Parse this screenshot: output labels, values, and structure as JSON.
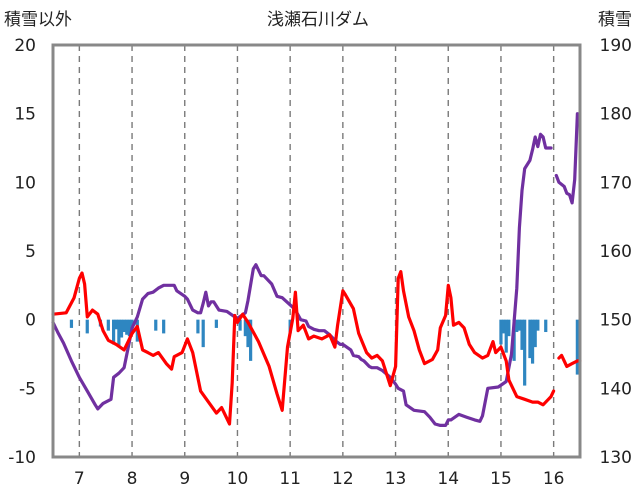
{
  "chart_data": {
    "type": "line",
    "title": "浅瀬石川ダム",
    "left_axis_label": "積雪以外",
    "right_axis_label": "積雪",
    "x_ticks": [
      "7",
      "8",
      "9",
      "10",
      "11",
      "12",
      "13",
      "14",
      "15",
      "16"
    ],
    "x_tick_values": [
      7,
      8,
      9,
      10,
      11,
      12,
      13,
      14,
      15,
      16
    ],
    "xlim": [
      6.5,
      16.5
    ],
    "ylim_left": [
      -10,
      20
    ],
    "ylim_right": [
      130,
      190
    ],
    "y_ticks_left": [
      "-10",
      "-5",
      "0",
      "5",
      "10",
      "15",
      "20"
    ],
    "y_ticks_right": [
      "130",
      "140",
      "150",
      "160",
      "170",
      "180",
      "190"
    ],
    "grid": "vertical dashed lines at each day",
    "series": [
      {
        "axis": "right",
        "color": "#7030a0",
        "points": [
          [
            6.5,
            149.6
          ],
          [
            6.6,
            148
          ],
          [
            6.7,
            146.6
          ],
          [
            6.85,
            144
          ],
          [
            7.0,
            141.6
          ],
          [
            7.15,
            139.6
          ],
          [
            7.3,
            137.6
          ],
          [
            7.35,
            137.0
          ],
          [
            7.45,
            137.8
          ],
          [
            7.6,
            138.4
          ],
          [
            7.65,
            141.6
          ],
          [
            7.75,
            142.2
          ],
          [
            7.85,
            143.0
          ],
          [
            7.95,
            146.8
          ],
          [
            8.0,
            148.8
          ],
          [
            8.1,
            150.4
          ],
          [
            8.2,
            153.0
          ],
          [
            8.3,
            153.8
          ],
          [
            8.4,
            154.0
          ],
          [
            8.5,
            154.6
          ],
          [
            8.6,
            155.0
          ],
          [
            8.8,
            155.0
          ],
          [
            8.85,
            154.2
          ],
          [
            9.0,
            153.4
          ],
          [
            9.05,
            153.0
          ],
          [
            9.15,
            151.4
          ],
          [
            9.25,
            151.0
          ],
          [
            9.3,
            151.0
          ],
          [
            9.35,
            152.4
          ],
          [
            9.4,
            154.0
          ],
          [
            9.45,
            152.0
          ],
          [
            9.5,
            152.6
          ],
          [
            9.55,
            152.6
          ],
          [
            9.65,
            151.4
          ],
          [
            9.8,
            151.2
          ],
          [
            9.95,
            150.4
          ],
          [
            10.0,
            150.2
          ],
          [
            10.15,
            151.0
          ],
          [
            10.2,
            152.8
          ],
          [
            10.3,
            157.4
          ],
          [
            10.35,
            158.0
          ],
          [
            10.45,
            156.4
          ],
          [
            10.5,
            156.4
          ],
          [
            10.65,
            155.2
          ],
          [
            10.75,
            153.4
          ],
          [
            10.85,
            153.2
          ],
          [
            11.05,
            151.8
          ],
          [
            11.1,
            151.4
          ],
          [
            11.2,
            150.0
          ],
          [
            11.3,
            149.8
          ],
          [
            11.35,
            149.0
          ],
          [
            11.45,
            148.6
          ],
          [
            11.55,
            148.4
          ],
          [
            11.65,
            148.4
          ],
          [
            11.75,
            147.8
          ],
          [
            11.8,
            147.4
          ],
          [
            11.85,
            147.0
          ],
          [
            11.95,
            146.4
          ],
          [
            12.0,
            146.4
          ],
          [
            12.15,
            145.6
          ],
          [
            12.2,
            144.8
          ],
          [
            12.3,
            144.6
          ],
          [
            12.35,
            144.2
          ],
          [
            12.4,
            144.0
          ],
          [
            12.5,
            143.2
          ],
          [
            12.55,
            143.0
          ],
          [
            12.65,
            143.0
          ],
          [
            12.75,
            142.6
          ],
          [
            12.9,
            141.6
          ],
          [
            13.0,
            140.6
          ],
          [
            13.05,
            140.0
          ],
          [
            13.15,
            139.6
          ],
          [
            13.2,
            137.6
          ],
          [
            13.35,
            136.8
          ],
          [
            13.55,
            136.6
          ],
          [
            13.65,
            135.8
          ],
          [
            13.75,
            134.8
          ],
          [
            13.85,
            134.6
          ],
          [
            13.95,
            134.6
          ],
          [
            14.0,
            135.4
          ],
          [
            14.05,
            135.4
          ],
          [
            14.2,
            136.2
          ],
          [
            14.35,
            135.8
          ],
          [
            14.5,
            135.4
          ],
          [
            14.6,
            135.2
          ],
          [
            14.65,
            136.0
          ],
          [
            14.75,
            140.0
          ],
          [
            14.95,
            140.2
          ],
          [
            15.1,
            141.0
          ],
          [
            15.2,
            145.0
          ],
          [
            15.3,
            154.6
          ],
          [
            15.35,
            163.4
          ],
          [
            15.4,
            168.8
          ],
          [
            15.45,
            172.0
          ],
          [
            15.55,
            173.2
          ],
          [
            15.6,
            174.8
          ],
          [
            15.65,
            176.6
          ],
          [
            15.7,
            175.2
          ],
          [
            15.75,
            177.0
          ],
          [
            15.8,
            176.6
          ],
          [
            15.85,
            175.0
          ],
          [
            15.95,
            175.0
          ]
        ]
      },
      {
        "axis": "right",
        "color": "#7030a0",
        "points": [
          [
            16.05,
            171.0
          ],
          [
            16.1,
            170.0
          ],
          [
            16.2,
            169.4
          ],
          [
            16.25,
            168.4
          ],
          [
            16.3,
            168.2
          ],
          [
            16.35,
            167.0
          ],
          [
            16.4,
            170.4
          ],
          [
            16.45,
            180.0
          ]
        ]
      },
      {
        "axis": "left",
        "color": "#ff0000",
        "points": [
          [
            6.5,
            0.4
          ],
          [
            6.75,
            0.5
          ],
          [
            6.9,
            1.6
          ],
          [
            7.0,
            3.0
          ],
          [
            7.05,
            3.4
          ],
          [
            7.1,
            2.6
          ],
          [
            7.15,
            0.2
          ],
          [
            7.25,
            0.7
          ],
          [
            7.35,
            0.4
          ],
          [
            7.45,
            -0.8
          ],
          [
            7.55,
            -1.5
          ],
          [
            7.7,
            -1.8
          ],
          [
            7.85,
            -2.2
          ],
          [
            8.0,
            -1.0
          ],
          [
            8.1,
            -0.5
          ],
          [
            8.2,
            -2.2
          ],
          [
            8.3,
            -2.4
          ],
          [
            8.4,
            -2.6
          ],
          [
            8.5,
            -2.4
          ],
          [
            8.65,
            -3.2
          ],
          [
            8.75,
            -3.6
          ],
          [
            8.8,
            -2.7
          ],
          [
            8.95,
            -2.4
          ],
          [
            9.05,
            -1.4
          ],
          [
            9.15,
            -2.4
          ],
          [
            9.3,
            -5.2
          ],
          [
            9.45,
            -6.0
          ],
          [
            9.6,
            -6.8
          ],
          [
            9.7,
            -6.4
          ],
          [
            9.8,
            -7.2
          ],
          [
            9.85,
            -7.6
          ],
          [
            9.9,
            -4.6
          ],
          [
            9.95,
            0.3
          ],
          [
            10.0,
            -0.2
          ],
          [
            10.1,
            0.4
          ],
          [
            10.2,
            -0.2
          ],
          [
            10.4,
            -1.6
          ],
          [
            10.6,
            -3.4
          ],
          [
            10.75,
            -5.4
          ],
          [
            10.85,
            -6.6
          ],
          [
            10.95,
            -2.0
          ],
          [
            11.05,
            0.1
          ],
          [
            11.1,
            2.0
          ],
          [
            11.15,
            -0.8
          ],
          [
            11.25,
            -0.4
          ],
          [
            11.35,
            -1.4
          ],
          [
            11.45,
            -1.2
          ],
          [
            11.6,
            -1.4
          ],
          [
            11.75,
            -1.1
          ],
          [
            11.85,
            -2.0
          ],
          [
            11.9,
            -0.4
          ],
          [
            12.0,
            2.1
          ],
          [
            12.05,
            1.8
          ],
          [
            12.2,
            0.8
          ],
          [
            12.3,
            -1.0
          ],
          [
            12.45,
            -2.4
          ],
          [
            12.55,
            -2.8
          ],
          [
            12.65,
            -2.6
          ],
          [
            12.75,
            -3.0
          ],
          [
            12.9,
            -4.8
          ],
          [
            13.0,
            -3.4
          ],
          [
            13.05,
            3.0
          ],
          [
            13.1,
            3.5
          ],
          [
            13.15,
            2.1
          ],
          [
            13.25,
            0.2
          ],
          [
            13.35,
            -0.8
          ],
          [
            13.45,
            -2.2
          ],
          [
            13.55,
            -3.2
          ],
          [
            13.7,
            -2.9
          ],
          [
            13.8,
            -2.2
          ],
          [
            13.85,
            -0.6
          ],
          [
            13.95,
            0.3
          ],
          [
            14.0,
            2.5
          ],
          [
            14.05,
            1.6
          ],
          [
            14.1,
            -0.4
          ],
          [
            14.2,
            -0.2
          ],
          [
            14.3,
            -0.6
          ],
          [
            14.4,
            -1.8
          ],
          [
            14.5,
            -2.4
          ],
          [
            14.65,
            -2.8
          ],
          [
            14.75,
            -2.6
          ],
          [
            14.85,
            -1.6
          ],
          [
            14.9,
            -2.4
          ],
          [
            15.0,
            -2.0
          ],
          [
            15.1,
            -3.0
          ],
          [
            15.15,
            -4.4
          ],
          [
            15.3,
            -5.6
          ],
          [
            15.45,
            -5.8
          ],
          [
            15.6,
            -6.0
          ],
          [
            15.7,
            -6.0
          ],
          [
            15.8,
            -6.2
          ],
          [
            15.9,
            -5.8
          ],
          [
            15.95,
            -5.6
          ],
          [
            16.0,
            -5.2
          ]
        ]
      },
      {
        "axis": "left",
        "color": "#ff0000",
        "points": [
          [
            16.1,
            -2.8
          ],
          [
            16.15,
            -2.6
          ],
          [
            16.2,
            -3.0
          ],
          [
            16.25,
            -3.4
          ],
          [
            16.35,
            -3.2
          ],
          [
            16.45,
            -3.0
          ],
          [
            16.5,
            -3.0
          ]
        ]
      },
      {
        "axis": "left",
        "type": "bar",
        "color": "#2e86c1",
        "points": [
          [
            6.85,
            -0.6
          ],
          [
            7.15,
            -1.0
          ],
          [
            7.4,
            -0.5
          ],
          [
            7.55,
            -0.8
          ],
          [
            7.65,
            -1.8
          ],
          [
            7.7,
            -0.7
          ],
          [
            7.75,
            -2.0
          ],
          [
            7.8,
            -1.3
          ],
          [
            7.85,
            -0.9
          ],
          [
            7.9,
            -1.1
          ],
          [
            7.95,
            -1.2
          ],
          [
            8.0,
            -0.6
          ],
          [
            8.1,
            -1.6
          ],
          [
            8.45,
            -0.8
          ],
          [
            8.6,
            -1.0
          ],
          [
            9.25,
            -1.0
          ],
          [
            9.35,
            -2.0
          ],
          [
            9.6,
            -0.6
          ],
          [
            10.05,
            -0.8
          ],
          [
            10.15,
            -1.2
          ],
          [
            10.2,
            -2.0
          ],
          [
            10.25,
            -3.0
          ],
          [
            11.0,
            -1.0
          ],
          [
            15.0,
            -1.8
          ],
          [
            15.05,
            -1.0
          ],
          [
            15.1,
            -2.4
          ],
          [
            15.15,
            -1.2
          ],
          [
            15.25,
            -3.0
          ],
          [
            15.3,
            -0.9
          ],
          [
            15.35,
            -0.8
          ],
          [
            15.4,
            -2.2
          ],
          [
            15.45,
            -4.8
          ],
          [
            15.55,
            -2.8
          ],
          [
            15.6,
            -3.2
          ],
          [
            15.65,
            -2.0
          ],
          [
            15.7,
            -0.8
          ],
          [
            15.85,
            -0.9
          ],
          [
            16.45,
            -4.0
          ]
        ]
      }
    ]
  }
}
